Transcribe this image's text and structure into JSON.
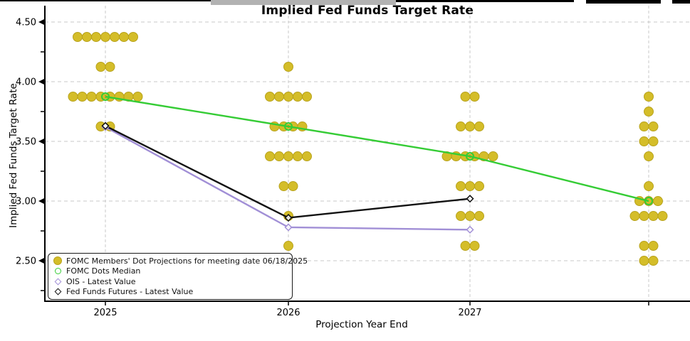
{
  "chart_data": {
    "type": "scatter",
    "title": "Implied Fed Funds Target Rate",
    "xlabel": "Projection Year End",
    "ylabel": "Implied Fed Funds Target Rate",
    "x_tick_labels": [
      "2025",
      "2026",
      "2027",
      ""
    ],
    "y_tick_labels": [
      "4.50",
      "4.00",
      "3.50",
      "3.00",
      "2.50"
    ],
    "y_tick_values": [
      4.5,
      4.0,
      3.5,
      3.0,
      2.5
    ],
    "y_minor_ticks": [
      4.25,
      3.75,
      3.25,
      2.75,
      2.25
    ],
    "ylim": [
      2.155,
      4.625
    ],
    "grid": true,
    "colors": {
      "dots": "#d4bd29",
      "dots_edge": "#b8a31c",
      "median": "#35cc35",
      "ois": "#a violet",
      "gridline": "#c8c8c8",
      "axis": "#000000"
    },
    "dot_projections": {
      "meeting_date": "06/18/2025",
      "columns": [
        {
          "x_label": "2025",
          "levels": [
            {
              "rate": 4.375,
              "count": 7
            },
            {
              "rate": 4.125,
              "count": 2
            },
            {
              "rate": 3.875,
              "count": 8
            },
            {
              "rate": 3.625,
              "count": 2
            }
          ]
        },
        {
          "x_label": "2026",
          "levels": [
            {
              "rate": 4.125,
              "count": 1
            },
            {
              "rate": 3.875,
              "count": 5
            },
            {
              "rate": 3.625,
              "count": 4
            },
            {
              "rate": 3.375,
              "count": 5
            },
            {
              "rate": 3.125,
              "count": 2
            },
            {
              "rate": 2.875,
              "count": 1
            },
            {
              "rate": 2.625,
              "count": 1
            }
          ]
        },
        {
          "x_label": "2027",
          "levels": [
            {
              "rate": 3.875,
              "count": 2
            },
            {
              "rate": 3.625,
              "count": 3
            },
            {
              "rate": 3.375,
              "count": 6
            },
            {
              "rate": 3.125,
              "count": 3
            },
            {
              "rate": 2.875,
              "count": 3
            },
            {
              "rate": 2.625,
              "count": 2
            }
          ]
        },
        {
          "x_label": "",
          "levels": [
            {
              "rate": 3.875,
              "count": 1
            },
            {
              "rate": 3.75,
              "count": 1
            },
            {
              "rate": 3.625,
              "count": 2
            },
            {
              "rate": 3.5,
              "count": 2
            },
            {
              "rate": 3.375,
              "count": 1
            },
            {
              "rate": 3.125,
              "count": 1
            },
            {
              "rate": 3.0,
              "count": 3
            },
            {
              "rate": 2.875,
              "count": 4
            },
            {
              "rate": 2.625,
              "count": 2
            },
            {
              "rate": 2.5,
              "count": 2
            }
          ]
        }
      ]
    },
    "series": [
      {
        "name": "FOMC Dots Median",
        "marker": "open-circle",
        "color_key": "median",
        "values": [
          3.875,
          3.625,
          3.375,
          3.0
        ]
      },
      {
        "name": "OIS - Latest Value",
        "marker": "open-diamond",
        "color_key": "ois",
        "values": [
          3.62,
          2.78,
          2.76,
          null
        ]
      },
      {
        "name": "Fed Funds Futures - Latest Value",
        "marker": "open-diamond",
        "color_key": "futures",
        "values": [
          3.63,
          2.86,
          3.02,
          null
        ]
      }
    ],
    "legend": {
      "position": "lower-left",
      "items": [
        {
          "marker": "filled-circle",
          "color_key": "dots",
          "label": "FOMC Members' Dot Projections for meeting date 06/18/2025"
        },
        {
          "marker": "open-circle",
          "color_key": "median",
          "label": "FOMC Dots Median"
        },
        {
          "marker": "open-diamond",
          "color_key": "ois",
          "label": "OIS - Latest Value"
        },
        {
          "marker": "open-diamond",
          "color_key": "futures",
          "label": "Fed Funds Futures - Latest Value"
        }
      ]
    }
  }
}
